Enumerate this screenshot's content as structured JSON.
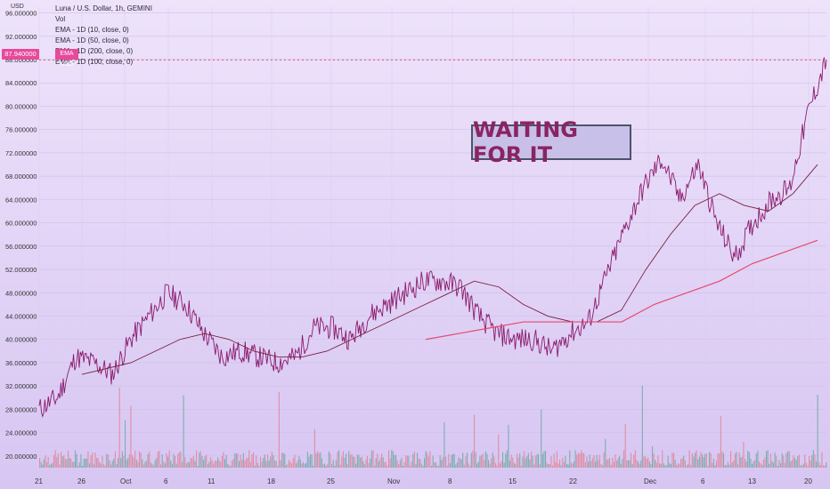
{
  "header": {
    "symbol_line": "Luna / U.S. Dollar, 1h, GEMINI",
    "vol_label": "Vol",
    "ema_lines": [
      "EMA - 1D (10, close, 0)",
      "EMA - 1D (50, close, 0)",
      "EMA - 1D (200, close, 0)",
      "EMA - 1D (100, close, 0)"
    ],
    "ema_tag": "EMA USD",
    "currency": "USD"
  },
  "price_tag": "87.940000",
  "annotation": "WAITING FOR IT",
  "chart_data": {
    "type": "line",
    "title": "",
    "x_tick_labels": [
      "21",
      "26",
      "Oct",
      "6",
      "11",
      "18",
      "25",
      "Nov",
      "8",
      "15",
      "22",
      "Dec",
      "6",
      "13",
      "20"
    ],
    "y_tick_labels": [
      "20.000000",
      "24.000000",
      "28.000000",
      "32.000000",
      "36.000000",
      "40.000000",
      "44.000000",
      "48.000000",
      "52.000000",
      "56.000000",
      "60.000000",
      "64.000000",
      "68.000000",
      "72.000000",
      "76.000000",
      "80.000000",
      "84.000000",
      "88.000000",
      "92.000000",
      "96.000000"
    ],
    "ylim": [
      18,
      97
    ],
    "price_points": [
      [
        "21",
        28
      ],
      [
        "23",
        30
      ],
      [
        "26",
        37
      ],
      [
        "28",
        36
      ],
      [
        "30",
        34
      ],
      [
        "Oct",
        40
      ],
      [
        "2",
        44
      ],
      [
        "4",
        48
      ],
      [
        "6",
        46
      ],
      [
        "8",
        41
      ],
      [
        "11",
        37
      ],
      [
        "13",
        38
      ],
      [
        "15",
        37
      ],
      [
        "18",
        36
      ],
      [
        "20",
        37
      ],
      [
        "23",
        42
      ],
      [
        "25",
        42
      ],
      [
        "27",
        40
      ],
      [
        "Nov",
        44
      ],
      [
        "3",
        46
      ],
      [
        "5",
        48
      ],
      [
        "8",
        50
      ],
      [
        "11",
        50
      ],
      [
        "13",
        49
      ],
      [
        "15",
        44
      ],
      [
        "18",
        41
      ],
      [
        "20",
        40
      ],
      [
        "22",
        40
      ],
      [
        "25",
        38
      ],
      [
        "27",
        41
      ],
      [
        "29",
        43
      ],
      [
        "Dec",
        51
      ],
      [
        "3",
        59
      ],
      [
        "5",
        66
      ],
      [
        "6",
        71
      ],
      [
        "8",
        64
      ],
      [
        "10",
        70
      ],
      [
        "12",
        60
      ],
      [
        "13",
        54
      ],
      [
        "15",
        60
      ],
      [
        "17",
        64
      ],
      [
        "18",
        66
      ],
      [
        "20",
        79
      ],
      [
        "22",
        88
      ]
    ],
    "series": [
      {
        "name": "EMA - 1D (50, close, 0)",
        "values": [
          34,
          35,
          36,
          38,
          40,
          41,
          40,
          38,
          37,
          37,
          38,
          40,
          42,
          44,
          46,
          48,
          50,
          49,
          46,
          44,
          43,
          43,
          45,
          52,
          58,
          63,
          65,
          63,
          62,
          65,
          70
        ]
      },
      {
        "name": "EMA - 1D (200, close, 0)",
        "values": [
          40,
          41,
          42,
          43,
          43,
          43,
          43,
          46,
          48,
          50,
          53,
          55,
          57
        ]
      }
    ],
    "colors": {
      "price": "#8b1a6d",
      "ema50": "#7b1f3d",
      "ema200": "#e64a6d",
      "vol_up": "#5fa39a",
      "vol_down": "#e07a8a",
      "dotted": "#e64a6d"
    },
    "grid": true
  }
}
